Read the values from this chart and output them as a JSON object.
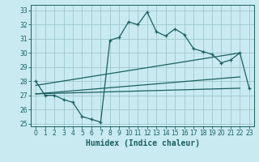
{
  "title": "",
  "xlabel": "Humidex (Indice chaleur)",
  "bg_color": "#c8eaf0",
  "grid_color": "#9fc8cc",
  "line_color": "#1a6060",
  "xlim": [
    -0.5,
    23.5
  ],
  "ylim": [
    24.8,
    33.4
  ],
  "xticks": [
    0,
    1,
    2,
    3,
    4,
    5,
    6,
    7,
    8,
    9,
    10,
    11,
    12,
    13,
    14,
    15,
    16,
    17,
    18,
    19,
    20,
    21,
    22,
    23
  ],
  "yticks": [
    25,
    26,
    27,
    28,
    29,
    30,
    31,
    32,
    33
  ],
  "series1_x": [
    0,
    1,
    2,
    3,
    4,
    5,
    6,
    7,
    8,
    9,
    10,
    11,
    12,
    13,
    14,
    15,
    16,
    17,
    18,
    19,
    20,
    21,
    22,
    23
  ],
  "series1_y": [
    28.0,
    27.0,
    27.0,
    26.7,
    26.5,
    25.5,
    25.3,
    25.1,
    30.9,
    31.1,
    32.2,
    32.0,
    32.9,
    31.5,
    31.2,
    31.7,
    31.3,
    30.3,
    30.1,
    29.9,
    29.3,
    29.5,
    30.0,
    27.5
  ],
  "series2_x": [
    0,
    22
  ],
  "series2_y": [
    27.7,
    30.0
  ],
  "series3_x": [
    0,
    22
  ],
  "series3_y": [
    27.1,
    28.3
  ],
  "series4_x": [
    0,
    22
  ],
  "series4_y": [
    27.1,
    27.5
  ],
  "tick_fontsize": 5.5,
  "xlabel_fontsize": 7.0
}
